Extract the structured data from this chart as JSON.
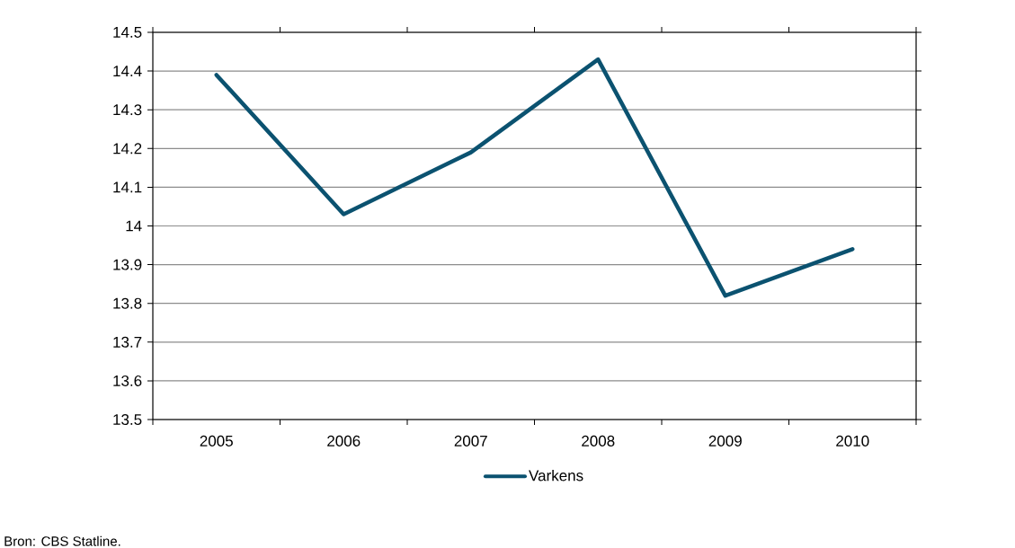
{
  "chart_data": {
    "type": "line",
    "categories": [
      "2005",
      "2006",
      "2007",
      "2008",
      "2009",
      "2010"
    ],
    "series": [
      {
        "name": "Varkens",
        "color": "#0b5270",
        "values": [
          14.39,
          14.03,
          14.19,
          14.43,
          13.82,
          13.94
        ]
      }
    ],
    "ylim": [
      13.5,
      14.5
    ],
    "yticks": [
      13.5,
      13.6,
      13.7,
      13.8,
      13.9,
      14,
      14.1,
      14.2,
      14.3,
      14.4,
      14.5
    ],
    "grid": "y",
    "legend": "bottom",
    "marker": "none",
    "line_style": "solid",
    "annotations": [
      "Bron: CBS Statline."
    ]
  }
}
